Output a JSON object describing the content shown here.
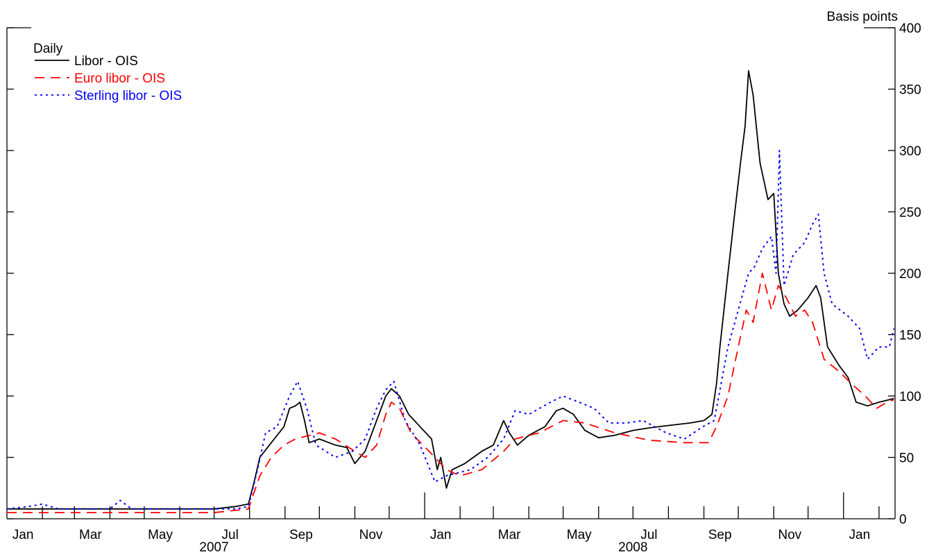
{
  "chart_data": {
    "type": "line",
    "frequency_label": "Daily",
    "y_unit_label": "Basis points",
    "y_axis_side": "right",
    "ylim": [
      0,
      400
    ],
    "y_ticks": [
      0,
      50,
      100,
      150,
      200,
      250,
      300,
      350,
      400
    ],
    "x_range": [
      "2007-01-01",
      "2009-02-15"
    ],
    "x_month_labels": [
      {
        "label": "Jan",
        "date": "2007-01-15"
      },
      {
        "label": "Mar",
        "date": "2007-03-15"
      },
      {
        "label": "May",
        "date": "2007-05-15"
      },
      {
        "label": "Jul",
        "date": "2007-07-15"
      },
      {
        "label": "Sep",
        "date": "2007-09-15"
      },
      {
        "label": "Nov",
        "date": "2007-11-15"
      },
      {
        "label": "Jan",
        "date": "2008-01-15"
      },
      {
        "label": "Mar",
        "date": "2008-03-15"
      },
      {
        "label": "May",
        "date": "2008-05-15"
      },
      {
        "label": "Jul",
        "date": "2008-07-15"
      },
      {
        "label": "Sep",
        "date": "2008-09-15"
      },
      {
        "label": "Nov",
        "date": "2008-11-15"
      },
      {
        "label": "Jan",
        "date": "2009-01-15"
      }
    ],
    "x_year_labels": [
      {
        "label": "2007",
        "date": "2007-07-01"
      },
      {
        "label": "2008",
        "date": "2008-07-01"
      }
    ],
    "grid": false,
    "legend_position": "top-left",
    "series": [
      {
        "name": "Libor - OIS",
        "color": "#000000",
        "style": "solid",
        "points": [
          [
            "2007-01-01",
            8
          ],
          [
            "2007-02-01",
            8
          ],
          [
            "2007-03-01",
            8
          ],
          [
            "2007-04-01",
            8
          ],
          [
            "2007-05-01",
            8
          ],
          [
            "2007-06-01",
            8
          ],
          [
            "2007-07-01",
            8
          ],
          [
            "2007-07-20",
            10
          ],
          [
            "2007-07-31",
            12
          ],
          [
            "2007-08-05",
            30
          ],
          [
            "2007-08-10",
            50
          ],
          [
            "2007-08-20",
            62
          ],
          [
            "2007-08-31",
            75
          ],
          [
            "2007-09-05",
            90
          ],
          [
            "2007-09-10",
            92
          ],
          [
            "2007-09-14",
            95
          ],
          [
            "2007-09-18",
            80
          ],
          [
            "2007-09-22",
            62
          ],
          [
            "2007-10-01",
            65
          ],
          [
            "2007-10-15",
            60
          ],
          [
            "2007-10-25",
            58
          ],
          [
            "2007-11-01",
            45
          ],
          [
            "2007-11-10",
            55
          ],
          [
            "2007-11-20",
            80
          ],
          [
            "2007-11-28",
            100
          ],
          [
            "2007-12-03",
            106
          ],
          [
            "2007-12-10",
            100
          ],
          [
            "2007-12-18",
            85
          ],
          [
            "2007-12-28",
            75
          ],
          [
            "2008-01-07",
            65
          ],
          [
            "2008-01-12",
            40
          ],
          [
            "2008-01-15",
            50
          ],
          [
            "2008-01-20",
            25
          ],
          [
            "2008-01-25",
            40
          ],
          [
            "2008-02-05",
            45
          ],
          [
            "2008-02-20",
            55
          ],
          [
            "2008-03-01",
            60
          ],
          [
            "2008-03-10",
            80
          ],
          [
            "2008-03-15",
            70
          ],
          [
            "2008-03-22",
            60
          ],
          [
            "2008-04-01",
            68
          ],
          [
            "2008-04-15",
            75
          ],
          [
            "2008-04-25",
            88
          ],
          [
            "2008-05-01",
            90
          ],
          [
            "2008-05-10",
            85
          ],
          [
            "2008-05-20",
            72
          ],
          [
            "2008-06-01",
            66
          ],
          [
            "2008-06-15",
            68
          ],
          [
            "2008-07-01",
            72
          ],
          [
            "2008-07-15",
            74
          ],
          [
            "2008-08-01",
            76
          ],
          [
            "2008-08-20",
            78
          ],
          [
            "2008-09-01",
            80
          ],
          [
            "2008-09-08",
            85
          ],
          [
            "2008-09-12",
            110
          ],
          [
            "2008-09-15",
            140
          ],
          [
            "2008-09-22",
            200
          ],
          [
            "2008-09-28",
            250
          ],
          [
            "2008-10-03",
            290
          ],
          [
            "2008-10-07",
            320
          ],
          [
            "2008-10-10",
            365
          ],
          [
            "2008-10-14",
            345
          ],
          [
            "2008-10-20",
            290
          ],
          [
            "2008-10-27",
            260
          ],
          [
            "2008-11-01",
            265
          ],
          [
            "2008-11-05",
            200
          ],
          [
            "2008-11-10",
            175
          ],
          [
            "2008-11-15",
            165
          ],
          [
            "2008-11-22",
            170
          ],
          [
            "2008-12-01",
            180
          ],
          [
            "2008-12-08",
            190
          ],
          [
            "2008-12-12",
            180
          ],
          [
            "2008-12-18",
            140
          ],
          [
            "2008-12-28",
            125
          ],
          [
            "2009-01-05",
            115
          ],
          [
            "2009-01-12",
            95
          ],
          [
            "2009-01-22",
            92
          ],
          [
            "2009-02-01",
            95
          ],
          [
            "2009-02-10",
            97
          ],
          [
            "2009-02-14",
            98
          ]
        ]
      },
      {
        "name": "Euro libor - OIS",
        "color": "#ff0000",
        "style": "dashed",
        "points": [
          [
            "2007-01-01",
            5
          ],
          [
            "2007-02-01",
            5
          ],
          [
            "2007-03-01",
            5
          ],
          [
            "2007-04-01",
            5
          ],
          [
            "2007-05-01",
            5
          ],
          [
            "2007-06-01",
            5
          ],
          [
            "2007-07-01",
            5
          ],
          [
            "2007-07-31",
            8
          ],
          [
            "2007-08-10",
            35
          ],
          [
            "2007-08-20",
            50
          ],
          [
            "2007-08-31",
            60
          ],
          [
            "2007-09-10",
            65
          ],
          [
            "2007-10-01",
            70
          ],
          [
            "2007-10-15",
            65
          ],
          [
            "2007-11-01",
            55
          ],
          [
            "2007-11-10",
            50
          ],
          [
            "2007-11-20",
            60
          ],
          [
            "2007-11-28",
            85
          ],
          [
            "2007-12-03",
            95
          ],
          [
            "2007-12-10",
            90
          ],
          [
            "2007-12-20",
            70
          ],
          [
            "2008-01-10",
            50
          ],
          [
            "2008-01-20",
            40
          ],
          [
            "2008-02-01",
            35
          ],
          [
            "2008-02-20",
            40
          ],
          [
            "2008-03-10",
            55
          ],
          [
            "2008-03-20",
            65
          ],
          [
            "2008-04-10",
            70
          ],
          [
            "2008-05-01",
            80
          ],
          [
            "2008-05-20",
            78
          ],
          [
            "2008-06-15",
            70
          ],
          [
            "2008-07-15",
            64
          ],
          [
            "2008-08-15",
            62
          ],
          [
            "2008-09-05",
            62
          ],
          [
            "2008-09-12",
            75
          ],
          [
            "2008-09-22",
            100
          ],
          [
            "2008-10-01",
            140
          ],
          [
            "2008-10-08",
            170
          ],
          [
            "2008-10-14",
            160
          ],
          [
            "2008-10-22",
            200
          ],
          [
            "2008-10-30",
            170
          ],
          [
            "2008-11-05",
            190
          ],
          [
            "2008-11-12",
            180
          ],
          [
            "2008-11-20",
            165
          ],
          [
            "2008-11-28",
            170
          ],
          [
            "2008-12-05",
            160
          ],
          [
            "2008-12-15",
            130
          ],
          [
            "2008-12-28",
            120
          ],
          [
            "2009-01-08",
            110
          ],
          [
            "2009-01-20",
            100
          ],
          [
            "2009-01-30",
            90
          ],
          [
            "2009-02-08",
            95
          ],
          [
            "2009-02-14",
            97
          ]
        ]
      },
      {
        "name": "Sterling libor - OIS",
        "color": "#0000ff",
        "style": "dotted",
        "points": [
          [
            "2007-01-01",
            8
          ],
          [
            "2007-01-20",
            10
          ],
          [
            "2007-02-01",
            12
          ],
          [
            "2007-02-15",
            8
          ],
          [
            "2007-03-15",
            8
          ],
          [
            "2007-04-01",
            8
          ],
          [
            "2007-04-10",
            15
          ],
          [
            "2007-04-20",
            8
          ],
          [
            "2007-05-15",
            8
          ],
          [
            "2007-06-15",
            8
          ],
          [
            "2007-07-20",
            8
          ],
          [
            "2007-07-31",
            10
          ],
          [
            "2007-08-08",
            40
          ],
          [
            "2007-08-15",
            70
          ],
          [
            "2007-08-25",
            75
          ],
          [
            "2007-09-05",
            100
          ],
          [
            "2007-09-12",
            112
          ],
          [
            "2007-09-20",
            90
          ],
          [
            "2007-09-28",
            60
          ],
          [
            "2007-10-15",
            50
          ],
          [
            "2007-10-30",
            55
          ],
          [
            "2007-11-10",
            65
          ],
          [
            "2007-11-20",
            90
          ],
          [
            "2007-11-28",
            105
          ],
          [
            "2007-12-05",
            112
          ],
          [
            "2007-12-15",
            80
          ],
          [
            "2007-12-28",
            60
          ],
          [
            "2008-01-10",
            30
          ],
          [
            "2008-01-20",
            35
          ],
          [
            "2008-02-10",
            40
          ],
          [
            "2008-02-25",
            50
          ],
          [
            "2008-03-10",
            65
          ],
          [
            "2008-03-20",
            88
          ],
          [
            "2008-04-01",
            85
          ],
          [
            "2008-04-20",
            95
          ],
          [
            "2008-05-01",
            100
          ],
          [
            "2008-05-15",
            95
          ],
          [
            "2008-05-28",
            90
          ],
          [
            "2008-06-10",
            78
          ],
          [
            "2008-06-25",
            78
          ],
          [
            "2008-07-10",
            80
          ],
          [
            "2008-07-30",
            70
          ],
          [
            "2008-08-15",
            65
          ],
          [
            "2008-08-31",
            75
          ],
          [
            "2008-09-10",
            80
          ],
          [
            "2008-09-22",
            140
          ],
          [
            "2008-10-01",
            170
          ],
          [
            "2008-10-10",
            200
          ],
          [
            "2008-10-15",
            205
          ],
          [
            "2008-10-22",
            220
          ],
          [
            "2008-10-30",
            230
          ],
          [
            "2008-11-03",
            200
          ],
          [
            "2008-11-06",
            300
          ],
          [
            "2008-11-10",
            190
          ],
          [
            "2008-11-18",
            215
          ],
          [
            "2008-11-28",
            225
          ],
          [
            "2008-12-05",
            240
          ],
          [
            "2008-12-10",
            248
          ],
          [
            "2008-12-15",
            200
          ],
          [
            "2008-12-22",
            175
          ],
          [
            "2009-01-05",
            165
          ],
          [
            "2009-01-15",
            155
          ],
          [
            "2009-01-22",
            130
          ],
          [
            "2009-02-01",
            140
          ],
          [
            "2009-02-10",
            140
          ],
          [
            "2009-02-14",
            155
          ]
        ]
      }
    ]
  }
}
